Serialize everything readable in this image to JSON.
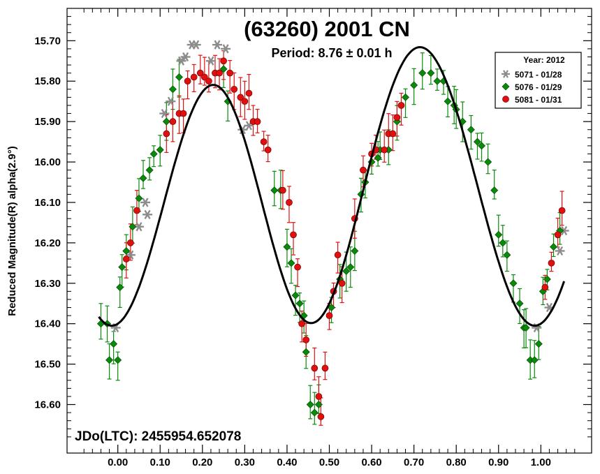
{
  "chart_data": {
    "type": "scatter",
    "title": "(63260) 2001 CN",
    "subtitle": "Period: 8.76 ± 0.01 h",
    "ylabel": "Reduced Magnitude(R) alpha(2.9°)",
    "xlabel": "",
    "annotation": "JDo(LTC): 2455954.652078",
    "xlim": [
      -0.12,
      1.12
    ],
    "ylim": [
      16.72,
      15.62
    ],
    "y_inverted": true,
    "xticks": [
      0.0,
      0.1,
      0.2,
      0.3,
      0.4,
      0.5,
      0.6,
      0.7,
      0.8,
      0.9,
      1.0
    ],
    "xtick_labels": [
      "0.00",
      "0.10",
      "0.20",
      "0.30",
      "0.40",
      "0.50",
      "0.60",
      "0.70",
      "0.80",
      "0.90",
      "1.00"
    ],
    "yticks": [
      15.7,
      15.8,
      15.9,
      16.0,
      16.1,
      16.2,
      16.3,
      16.4,
      16.5,
      16.6
    ],
    "ytick_labels": [
      "15.70",
      "15.80",
      "15.90",
      "16.00",
      "16.10",
      "16.20",
      "16.30",
      "16.40",
      "16.50",
      "16.60"
    ],
    "grid": false,
    "legend_position": "top-right",
    "legend_title": "Year: 2012",
    "series": [
      {
        "name": "5071 - 01/28",
        "marker": "asterisk",
        "color": "#8c8c8c",
        "points": [
          [
            -0.005,
            16.41
          ],
          [
            0.03,
            16.23
          ],
          [
            0.05,
            16.16
          ],
          [
            0.065,
            16.1
          ],
          [
            0.07,
            16.13
          ],
          [
            0.11,
            15.88
          ],
          [
            0.125,
            15.85
          ],
          [
            0.15,
            15.75
          ],
          [
            0.16,
            15.74
          ],
          [
            0.175,
            15.71
          ],
          [
            0.185,
            15.71
          ],
          [
            0.22,
            15.75
          ],
          [
            0.235,
            15.71
          ],
          [
            0.255,
            15.72
          ],
          [
            0.295,
            15.92
          ],
          [
            0.31,
            15.91
          ],
          [
            0.99,
            16.41
          ],
          [
            1.02,
            16.36
          ],
          [
            1.045,
            16.22
          ],
          [
            1.055,
            16.17
          ]
        ]
      },
      {
        "name": "5076 - 01/29",
        "marker": "diamond",
        "color": "#0a8a0a",
        "err": 0.02,
        "points": [
          [
            -0.04,
            16.4
          ],
          [
            -0.025,
            16.4
          ],
          [
            -0.02,
            16.49
          ],
          [
            -0.01,
            16.45
          ],
          [
            0.0,
            16.49
          ],
          [
            0.005,
            16.31
          ],
          [
            0.01,
            16.26
          ],
          [
            0.02,
            16.22
          ],
          [
            0.035,
            16.16
          ],
          [
            0.05,
            16.09
          ],
          [
            0.06,
            16.04
          ],
          [
            0.075,
            16.02
          ],
          [
            0.085,
            15.98
          ],
          [
            0.1,
            15.97
          ],
          [
            0.115,
            15.9
          ],
          [
            0.13,
            15.82
          ],
          [
            0.145,
            15.79
          ],
          [
            0.25,
            15.77
          ],
          [
            0.26,
            15.85
          ],
          [
            0.37,
            16.07
          ],
          [
            0.385,
            16.07
          ],
          [
            0.4,
            16.21
          ],
          [
            0.41,
            16.25
          ],
          [
            0.42,
            16.33
          ],
          [
            0.43,
            16.35
          ],
          [
            0.44,
            16.38
          ],
          [
            0.445,
            16.47
          ],
          [
            0.455,
            16.6
          ],
          [
            0.465,
            16.62
          ],
          [
            0.475,
            16.6
          ],
          [
            0.505,
            16.36
          ],
          [
            0.525,
            16.29
          ],
          [
            0.54,
            16.27
          ],
          [
            0.55,
            16.26
          ],
          [
            0.56,
            16.22
          ],
          [
            0.575,
            16.08
          ],
          [
            0.585,
            16.05
          ],
          [
            0.6,
            16.0
          ],
          [
            0.615,
            15.99
          ],
          [
            0.62,
            15.97
          ],
          [
            0.64,
            15.97
          ],
          [
            0.66,
            15.9
          ],
          [
            0.68,
            15.84
          ],
          [
            0.7,
            15.81
          ],
          [
            0.72,
            15.78
          ],
          [
            0.74,
            15.78
          ],
          [
            0.755,
            15.8
          ],
          [
            0.77,
            15.8
          ],
          [
            0.78,
            15.85
          ],
          [
            0.795,
            15.86
          ],
          [
            0.8,
            15.87
          ],
          [
            0.815,
            15.9
          ],
          [
            0.835,
            15.92
          ],
          [
            0.85,
            15.95
          ],
          [
            0.86,
            15.96
          ],
          [
            0.875,
            16.0
          ],
          [
            0.89,
            16.07
          ],
          [
            0.9,
            16.18
          ],
          [
            0.91,
            16.2
          ],
          [
            0.92,
            16.23
          ],
          [
            0.935,
            16.3
          ],
          [
            0.95,
            16.35
          ],
          [
            0.96,
            16.41
          ],
          [
            0.965,
            16.41
          ],
          [
            0.975,
            16.49
          ],
          [
            0.985,
            16.49
          ],
          [
            0.995,
            16.45
          ],
          [
            1.005,
            16.32
          ],
          [
            1.015,
            16.29
          ],
          [
            1.03,
            16.21
          ],
          [
            1.045,
            16.17
          ]
        ]
      },
      {
        "name": "5081 - 01/31",
        "marker": "circle",
        "color": "#e01010",
        "err": 0.02,
        "points": [
          [
            0.02,
            16.24
          ],
          [
            0.03,
            16.2
          ],
          [
            0.045,
            16.12
          ],
          [
            0.115,
            15.93
          ],
          [
            0.13,
            15.9
          ],
          [
            0.145,
            15.88
          ],
          [
            0.155,
            15.88
          ],
          [
            0.165,
            15.8
          ],
          [
            0.18,
            15.79
          ],
          [
            0.195,
            15.78
          ],
          [
            0.205,
            15.79
          ],
          [
            0.215,
            15.8
          ],
          [
            0.23,
            15.78
          ],
          [
            0.24,
            15.78
          ],
          [
            0.25,
            15.75
          ],
          [
            0.265,
            15.78
          ],
          [
            0.275,
            15.82
          ],
          [
            0.29,
            15.84
          ],
          [
            0.3,
            15.85
          ],
          [
            0.31,
            15.83
          ],
          [
            0.32,
            15.9
          ],
          [
            0.33,
            15.9
          ],
          [
            0.345,
            15.95
          ],
          [
            0.355,
            15.97
          ],
          [
            0.39,
            16.07
          ],
          [
            0.405,
            16.1
          ],
          [
            0.415,
            16.18
          ],
          [
            0.425,
            16.26
          ],
          [
            0.435,
            16.4
          ],
          [
            0.445,
            16.44
          ],
          [
            0.465,
            16.51
          ],
          [
            0.475,
            16.58
          ],
          [
            0.48,
            16.63
          ],
          [
            0.49,
            16.51
          ],
          [
            0.5,
            16.38
          ],
          [
            0.51,
            16.32
          ],
          [
            0.52,
            16.23
          ],
          [
            0.53,
            16.3
          ],
          [
            0.56,
            16.14
          ],
          [
            0.58,
            16.02
          ],
          [
            0.6,
            15.98
          ],
          [
            0.61,
            15.97
          ],
          [
            0.63,
            15.97
          ],
          [
            0.64,
            15.93
          ],
          [
            0.65,
            15.93
          ],
          [
            0.66,
            15.89
          ],
          [
            0.67,
            15.86
          ],
          [
            1.01,
            16.31
          ],
          [
            1.025,
            16.25
          ],
          [
            1.04,
            16.18
          ],
          [
            1.05,
            16.12
          ]
        ]
      }
    ],
    "fit_curve": {
      "type": "fourier",
      "mean": 16.08,
      "a1": 0.025,
      "b1": 0.06,
      "a2": 0.295,
      "b2": -0.115,
      "a3": 0.0,
      "b3": 0.02
    }
  }
}
